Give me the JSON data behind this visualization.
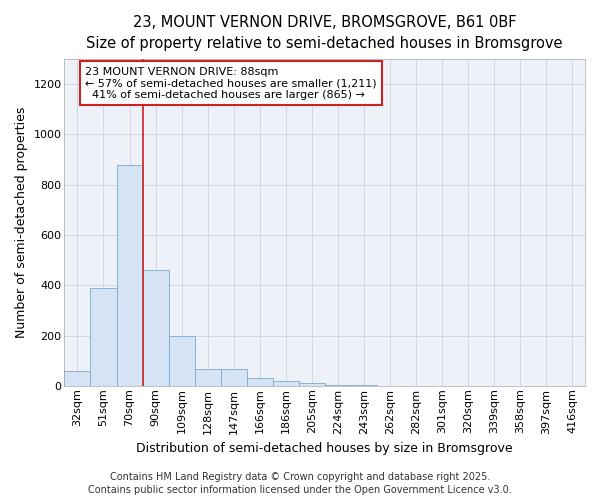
{
  "title_line1": "23, MOUNT VERNON DRIVE, BROMSGROVE, B61 0BF",
  "title_line2": "Size of property relative to semi-detached houses in Bromsgrove",
  "xlabel": "Distribution of semi-detached houses by size in Bromsgrove",
  "ylabel": "Number of semi-detached properties",
  "categories": [
    "32sqm",
    "51sqm",
    "70sqm",
    "90sqm",
    "109sqm",
    "128sqm",
    "147sqm",
    "166sqm",
    "186sqm",
    "205sqm",
    "224sqm",
    "243sqm",
    "262sqm",
    "282sqm",
    "301sqm",
    "320sqm",
    "339sqm",
    "358sqm",
    "397sqm",
    "416sqm"
  ],
  "values": [
    60,
    390,
    880,
    460,
    200,
    65,
    65,
    30,
    20,
    10,
    3,
    2,
    1,
    0,
    0,
    0,
    0,
    0,
    0,
    0
  ],
  "bar_color": "#d4e4f4",
  "bar_edge_color": "#7aaac8",
  "red_line_x": 2.5,
  "highlight_line_color": "#cc2222",
  "annotation_text_line1": "23 MOUNT VERNON DRIVE: 88sqm",
  "annotation_text_line2": "← 57% of semi-detached houses are smaller (1,211)",
  "annotation_text_line3": "  41% of semi-detached houses are larger (865) →",
  "annotation_box_color": "#ffffff",
  "annotation_box_edge_color": "#cc2222",
  "ylim": [
    0,
    1300
  ],
  "yticks": [
    0,
    200,
    400,
    600,
    800,
    1000,
    1200
  ],
  "grid_color": "#d0d8e0",
  "plot_bg_color": "#eef2f8",
  "footer_text": "Contains HM Land Registry data © Crown copyright and database right 2025.\nContains public sector information licensed under the Open Government Licence v3.0.",
  "title_fontsize": 10.5,
  "subtitle_fontsize": 9.5,
  "axis_label_fontsize": 9,
  "tick_fontsize": 8,
  "annotation_fontsize": 8,
  "footer_fontsize": 7
}
